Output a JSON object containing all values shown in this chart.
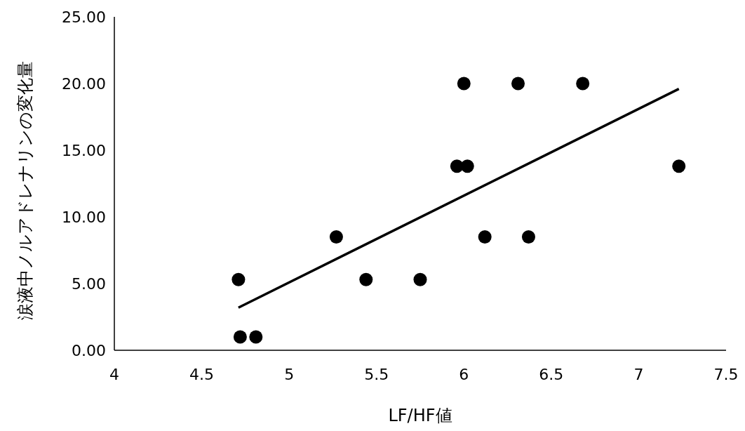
{
  "chart_data": {
    "type": "scatter",
    "xlabel": "LF/HF値",
    "ylabel": "涙液中ノルアドレナリンの変化量",
    "xlim": [
      4,
      7.5
    ],
    "xticks": [
      4,
      4.5,
      5,
      5.5,
      6,
      6.5,
      7,
      7.5
    ],
    "ylim": [
      0,
      25
    ],
    "yticks": [
      {
        "value": 0,
        "label": "0.00"
      },
      {
        "value": 5,
        "label": "5.00"
      },
      {
        "value": 10,
        "label": "10.00"
      },
      {
        "value": 15,
        "label": "15.00"
      },
      {
        "value": 20,
        "label": "20.00"
      },
      {
        "value": 25,
        "label": "25.00"
      }
    ],
    "grid": false,
    "series": [
      {
        "color": "#000000",
        "marker": "circle",
        "x": [
          4.71,
          4.72,
          4.81,
          5.27,
          5.44,
          5.75,
          5.96,
          6.0,
          6.02,
          6.12,
          6.31,
          6.37,
          6.68,
          7.23
        ],
        "values": [
          5.3,
          1.0,
          1.0,
          8.5,
          5.3,
          5.3,
          13.8,
          20.0,
          13.8,
          8.5,
          20.0,
          8.5,
          20.0,
          13.8
        ]
      },
      {
        "type": "line",
        "color": "#000000",
        "marker": "none",
        "line_style": "solid",
        "x": [
          4.71,
          7.23
        ],
        "values": [
          3.2,
          19.6
        ]
      }
    ]
  }
}
